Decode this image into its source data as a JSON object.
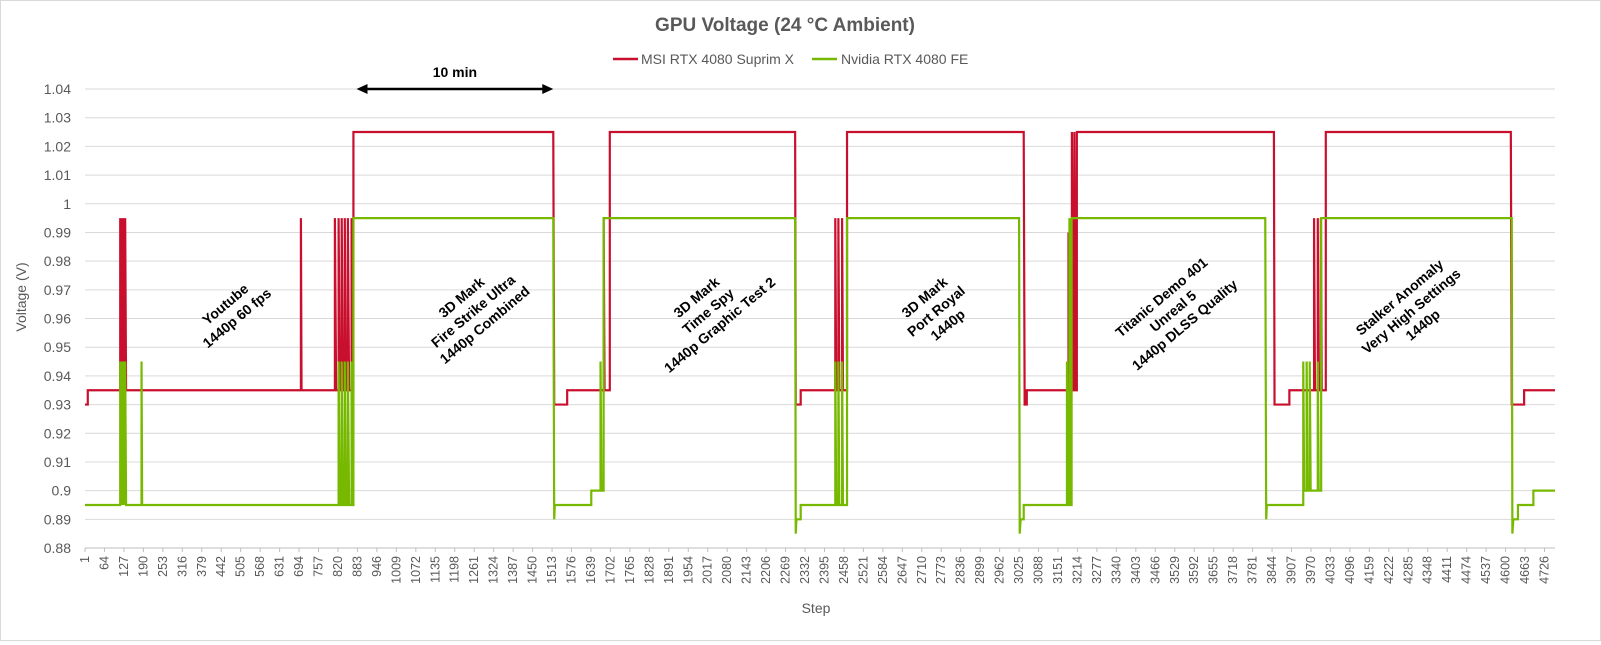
{
  "chart_data": {
    "type": "line",
    "title": "GPU Voltage (24 °C Ambient)",
    "xlabel": "Step",
    "ylabel": "Voltage (V)",
    "ylim": [
      0.88,
      1.04
    ],
    "y_ticks": [
      "0.88",
      "0.89",
      "0.9",
      "0.91",
      "0.92",
      "0.93",
      "0.94",
      "0.95",
      "0.96",
      "0.97",
      "0.98",
      "0.99",
      "1",
      "1.01",
      "1.02",
      "1.03",
      "1.04"
    ],
    "x_range": [
      1,
      4760
    ],
    "x_ticks": [
      "1",
      "64",
      "127",
      "190",
      "253",
      "316",
      "379",
      "442",
      "505",
      "568",
      "631",
      "694",
      "757",
      "820",
      "883",
      "946",
      "1009",
      "1072",
      "1135",
      "1198",
      "1261",
      "1324",
      "1387",
      "1450",
      "1513",
      "1576",
      "1639",
      "1702",
      "1765",
      "1828",
      "1891",
      "1954",
      "2017",
      "2080",
      "2143",
      "2206",
      "2269",
      "2332",
      "2395",
      "2458",
      "2521",
      "2584",
      "2647",
      "2710",
      "2773",
      "2836",
      "2899",
      "2962",
      "3025",
      "3088",
      "3151",
      "3214",
      "3277",
      "3340",
      "3403",
      "3466",
      "3529",
      "3592",
      "3655",
      "3718",
      "3781",
      "3844",
      "3907",
      "3970",
      "4033",
      "4096",
      "4159",
      "4222",
      "4285",
      "4348",
      "4411",
      "4474",
      "4537",
      "4600",
      "4663",
      "4726"
    ],
    "grid": "horizontal",
    "legend_position": "top",
    "series": [
      {
        "name": "MSI RTX 4080 Suprim X",
        "color": "#c8102e",
        "points": [
          [
            1,
            0.93
          ],
          [
            10,
            0.93
          ],
          [
            10,
            0.935
          ],
          [
            115,
            0.935
          ],
          [
            115,
            0.995
          ],
          [
            118,
            0.935
          ],
          [
            119,
            0.995
          ],
          [
            122,
            0.935
          ],
          [
            123,
            0.995
          ],
          [
            126,
            0.935
          ],
          [
            127,
            0.995
          ],
          [
            130,
            0.935
          ],
          [
            131,
            0.995
          ],
          [
            134,
            0.935
          ],
          [
            700,
            0.935
          ],
          [
            700,
            0.995
          ],
          [
            702,
            0.935
          ],
          [
            810,
            0.935
          ],
          [
            810,
            0.995
          ],
          [
            814,
            0.935
          ],
          [
            822,
            0.935
          ],
          [
            822,
            0.995
          ],
          [
            826,
            0.935
          ],
          [
            832,
            0.935
          ],
          [
            832,
            0.995
          ],
          [
            836,
            0.935
          ],
          [
            842,
            0.935
          ],
          [
            842,
            0.995
          ],
          [
            846,
            0.935
          ],
          [
            852,
            0.935
          ],
          [
            852,
            0.995
          ],
          [
            856,
            0.935
          ],
          [
            864,
            0.935
          ],
          [
            864,
            0.995
          ],
          [
            868,
            0.935
          ],
          [
            870,
            0.935
          ],
          [
            870,
            1.025
          ],
          [
            1517,
            1.025
          ],
          [
            1520,
            0.93
          ],
          [
            1562,
            0.93
          ],
          [
            1562,
            0.935
          ],
          [
            1680,
            0.935
          ],
          [
            1680,
            0.995
          ],
          [
            1683,
            0.935
          ],
          [
            1700,
            0.935
          ],
          [
            1700,
            1.025
          ],
          [
            2300,
            1.025
          ],
          [
            2302,
            0.93
          ],
          [
            2318,
            0.93
          ],
          [
            2318,
            0.935
          ],
          [
            2430,
            0.935
          ],
          [
            2430,
            0.995
          ],
          [
            2433,
            0.935
          ],
          [
            2440,
            0.935
          ],
          [
            2440,
            0.995
          ],
          [
            2443,
            0.935
          ],
          [
            2452,
            0.935
          ],
          [
            2452,
            0.995
          ],
          [
            2455,
            0.935
          ],
          [
            2468,
            0.935
          ],
          [
            2468,
            1.025
          ],
          [
            3040,
            1.025
          ],
          [
            3043,
            0.93
          ],
          [
            3050,
            0.93
          ],
          [
            3050,
            0.935
          ],
          [
            3185,
            0.935
          ],
          [
            3185,
            0.99
          ],
          [
            3188,
            0.935
          ],
          [
            3196,
            0.935
          ],
          [
            3196,
            1.025
          ],
          [
            3200,
            0.935
          ],
          [
            3204,
            0.935
          ],
          [
            3204,
            1.025
          ],
          [
            3208,
            0.935
          ],
          [
            3212,
            0.935
          ],
          [
            3212,
            1.025
          ],
          [
            3850,
            1.025
          ],
          [
            3852,
            0.93
          ],
          [
            3900,
            0.93
          ],
          [
            3900,
            0.935
          ],
          [
            3980,
            0.935
          ],
          [
            3980,
            0.995
          ],
          [
            3983,
            0.935
          ],
          [
            3992,
            0.935
          ],
          [
            3992,
            0.995
          ],
          [
            3995,
            0.935
          ],
          [
            4002,
            0.935
          ],
          [
            4002,
            0.995
          ],
          [
            4005,
            0.935
          ],
          [
            4018,
            0.935
          ],
          [
            4018,
            1.025
          ],
          [
            4617,
            1.025
          ],
          [
            4620,
            0.93
          ],
          [
            4660,
            0.93
          ],
          [
            4660,
            0.935
          ],
          [
            4760,
            0.935
          ]
        ]
      },
      {
        "name": "Nvidia RTX 4080 FE",
        "color": "#76b900",
        "points": [
          [
            1,
            0.895
          ],
          [
            115,
            0.895
          ],
          [
            115,
            0.945
          ],
          [
            118,
            0.895
          ],
          [
            119,
            0.945
          ],
          [
            122,
            0.895
          ],
          [
            123,
            0.945
          ],
          [
            126,
            0.895
          ],
          [
            127,
            0.945
          ],
          [
            130,
            0.895
          ],
          [
            131,
            0.945
          ],
          [
            134,
            0.895
          ],
          [
            184,
            0.895
          ],
          [
            184,
            0.945
          ],
          [
            186,
            0.895
          ],
          [
            822,
            0.895
          ],
          [
            822,
            0.945
          ],
          [
            826,
            0.895
          ],
          [
            832,
            0.895
          ],
          [
            832,
            0.945
          ],
          [
            836,
            0.895
          ],
          [
            842,
            0.895
          ],
          [
            842,
            0.945
          ],
          [
            846,
            0.895
          ],
          [
            852,
            0.895
          ],
          [
            852,
            0.945
          ],
          [
            856,
            0.895
          ],
          [
            864,
            0.895
          ],
          [
            864,
            0.945
          ],
          [
            868,
            0.895
          ],
          [
            870,
            0.895
          ],
          [
            870,
            0.995
          ],
          [
            1517,
            0.995
          ],
          [
            1520,
            0.89
          ],
          [
            1522,
            0.895
          ],
          [
            1640,
            0.895
          ],
          [
            1640,
            0.9
          ],
          [
            1670,
            0.9
          ],
          [
            1670,
            0.945
          ],
          [
            1673,
            0.9
          ],
          [
            1680,
            0.9
          ],
          [
            1680,
            0.995
          ],
          [
            2300,
            0.995
          ],
          [
            2302,
            0.885
          ],
          [
            2304,
            0.89
          ],
          [
            2318,
            0.89
          ],
          [
            2318,
            0.895
          ],
          [
            2430,
            0.895
          ],
          [
            2430,
            0.945
          ],
          [
            2433,
            0.895
          ],
          [
            2440,
            0.895
          ],
          [
            2440,
            0.945
          ],
          [
            2443,
            0.895
          ],
          [
            2452,
            0.895
          ],
          [
            2452,
            0.945
          ],
          [
            2455,
            0.895
          ],
          [
            2468,
            0.895
          ],
          [
            2468,
            0.995
          ],
          [
            3025,
            0.995
          ],
          [
            3027,
            0.885
          ],
          [
            3030,
            0.89
          ],
          [
            3040,
            0.89
          ],
          [
            3040,
            0.895
          ],
          [
            3180,
            0.895
          ],
          [
            3180,
            0.945
          ],
          [
            3183,
            0.895
          ],
          [
            3188,
            0.895
          ],
          [
            3188,
            0.995
          ],
          [
            3191,
            0.895
          ],
          [
            3195,
            0.895
          ],
          [
            3195,
            0.995
          ],
          [
            3822,
            0.995
          ],
          [
            3825,
            0.89
          ],
          [
            3827,
            0.895
          ],
          [
            3945,
            0.895
          ],
          [
            3945,
            0.945
          ],
          [
            3948,
            0.9
          ],
          [
            3956,
            0.9
          ],
          [
            3956,
            0.945
          ],
          [
            3959,
            0.9
          ],
          [
            3966,
            0.9
          ],
          [
            3966,
            0.945
          ],
          [
            3969,
            0.9
          ],
          [
            3992,
            0.9
          ],
          [
            3992,
            0.945
          ],
          [
            3995,
            0.9
          ],
          [
            4003,
            0.9
          ],
          [
            4003,
            0.995
          ],
          [
            4620,
            0.995
          ],
          [
            4622,
            0.885
          ],
          [
            4625,
            0.89
          ],
          [
            4640,
            0.89
          ],
          [
            4640,
            0.895
          ],
          [
            4690,
            0.895
          ],
          [
            4690,
            0.9
          ],
          [
            4760,
            0.9
          ]
        ]
      }
    ],
    "annotations": [
      {
        "id": "youtube",
        "lines": [
          "Youtube",
          "1440p 60 fps"
        ]
      },
      {
        "id": "firestrike",
        "lines": [
          "3D Mark",
          "Fire Strike Ultra",
          "1440p Combined"
        ]
      },
      {
        "id": "timespy",
        "lines": [
          "3D Mark",
          "Time Spy",
          "1440p Graphic Test 2"
        ]
      },
      {
        "id": "portroyal",
        "lines": [
          "3D Mark",
          "Port Royal",
          "1440p"
        ]
      },
      {
        "id": "titanic",
        "lines": [
          "Titanic Demo 401",
          "Unreal 5",
          "1440p DLSS Quality"
        ]
      },
      {
        "id": "stalker",
        "lines": [
          "Stalker Anomaly",
          "Very High Settings",
          "1440p"
        ]
      }
    ],
    "duration_marker": {
      "label": "10 min",
      "x_start": 880,
      "x_end": 1517
    }
  }
}
